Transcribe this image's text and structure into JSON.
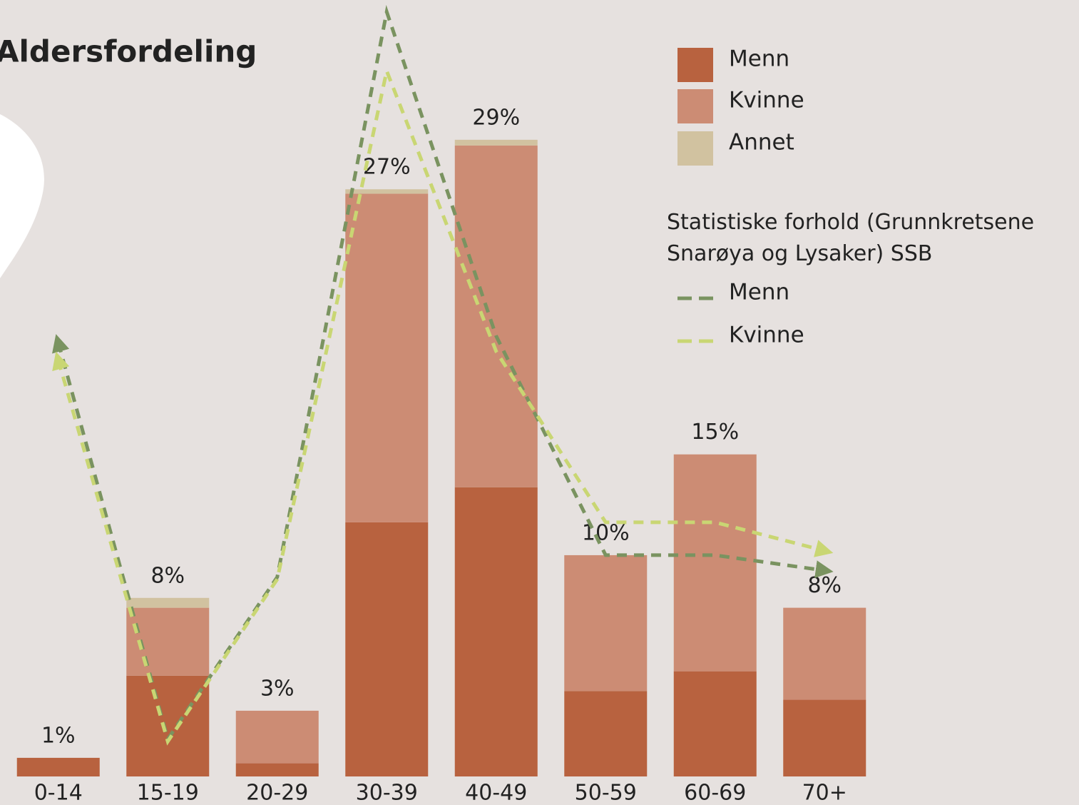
{
  "chart_data": {
    "type": "bar",
    "stacked": true,
    "title": "Aldersfordeling",
    "categories": [
      "0-14",
      "15-19",
      "20-29",
      "30-39",
      "40-49",
      "50-59",
      "60-69",
      "70+"
    ],
    "series": [
      {
        "name": "Menn",
        "color": "#b8623f",
        "values": [
          0.85,
          4.6,
          0.6,
          11.6,
          13.2,
          3.9,
          4.8,
          3.5
        ]
      },
      {
        "name": "Kvinne",
        "color": "#cc8c74",
        "values": [
          0,
          3.1,
          2.4,
          15.0,
          15.6,
          6.2,
          9.9,
          4.2
        ]
      },
      {
        "name": "Annet",
        "color": "#d1c2a0",
        "values": [
          0,
          0.45,
          0,
          0.2,
          0.26,
          0,
          0,
          0
        ]
      }
    ],
    "totals": [
      1,
      8,
      3,
      27,
      29,
      10,
      15,
      8
    ],
    "total_labels": [
      "1%",
      "8%",
      "3%",
      "27%",
      "29%",
      "10%",
      "15%",
      "8%"
    ],
    "line_legend_title": "Statistiske forhold (Grunnkretsene Snarøya og Lysaker) SSB",
    "line_series": [
      {
        "name": "Menn",
        "color": "#7a9360",
        "values": [
          19.8,
          1.7,
          9.1,
          34.9,
          20.1,
          10.1,
          10.1,
          9.4
        ]
      },
      {
        "name": "Kvinne",
        "color": "#c9d673",
        "values": [
          19.0,
          1.6,
          9.0,
          32.2,
          19.4,
          11.6,
          11.6,
          10.3
        ]
      }
    ],
    "ylim": [
      0,
      35
    ]
  }
}
